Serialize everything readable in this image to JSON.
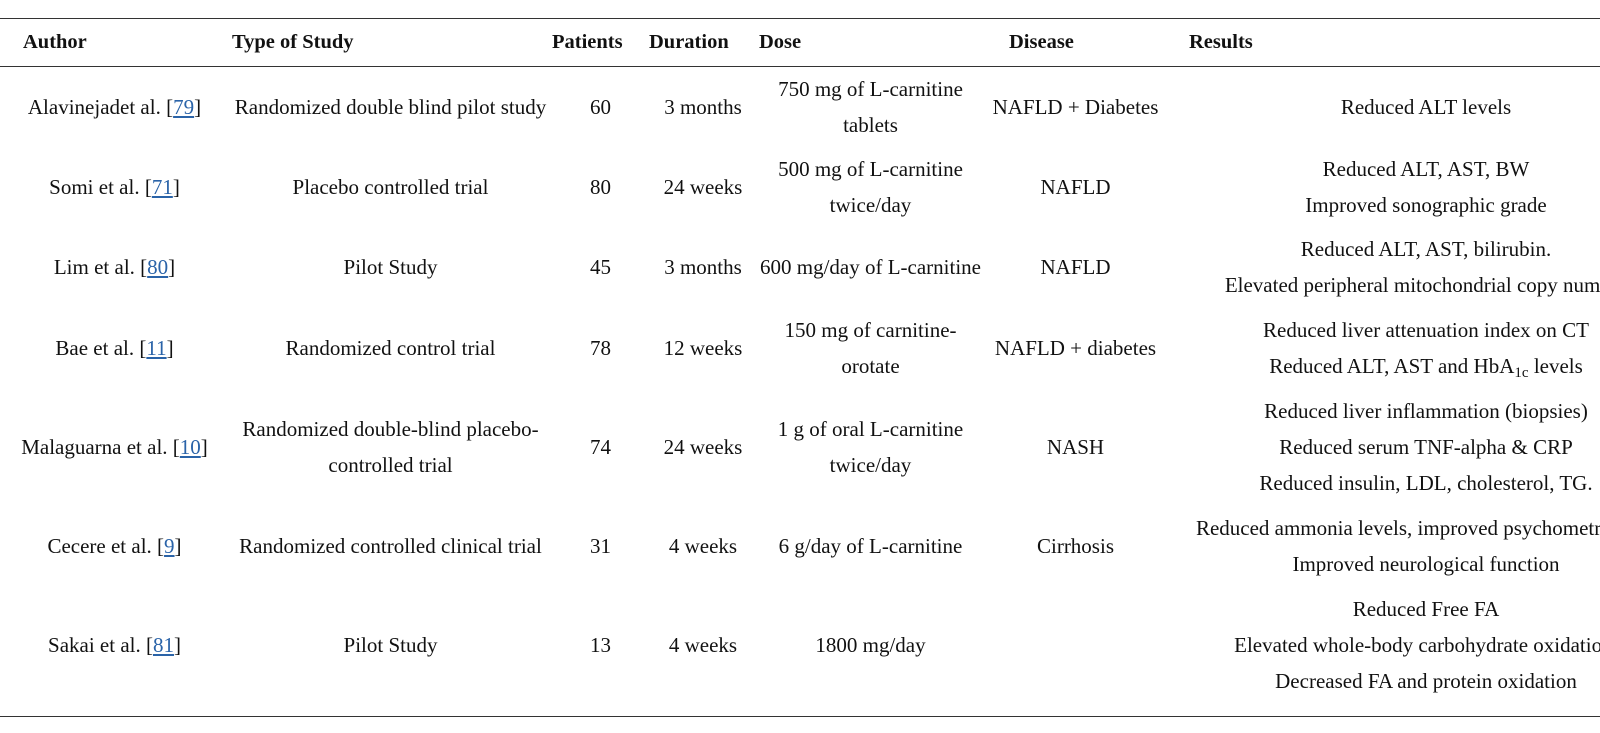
{
  "headers": {
    "author": "Author",
    "type": "Type of Study",
    "patients": "Patients",
    "duration": "Duration",
    "dose": "Dose",
    "disease": "Disease",
    "results": "Results"
  },
  "rows": [
    {
      "author": "Alavinejadet al.",
      "ref": "79",
      "type": "Randomized double blind pilot study",
      "patients": "60",
      "duration": "3 months",
      "dose": "750 mg of L-carnitine tablets",
      "disease": "NAFLD + Diabetes",
      "results": [
        "Reduced ALT levels"
      ]
    },
    {
      "author": "Somi et al.",
      "ref": "71",
      "type": "Placebo controlled trial",
      "patients": "80",
      "duration": "24 weeks",
      "dose": "500 mg of L-carnitine twice/day",
      "disease": "NAFLD",
      "results": [
        "Reduced ALT, AST, BW",
        "Improved sonographic grade"
      ]
    },
    {
      "author": "Lim et al.",
      "ref": "80",
      "type": "Pilot Study",
      "patients": "45",
      "duration": "3 months",
      "dose": "600 mg/day of L-carnitine",
      "disease": "NAFLD",
      "results": [
        "Reduced ALT, AST, bilirubin.",
        "Elevated peripheral mitochondrial copy number"
      ]
    },
    {
      "author": "Bae et al.",
      "ref": "11",
      "type": "Randomized control trial",
      "patients": "78",
      "duration": "12 weeks",
      "dose": "150 mg of carnitine-orotate",
      "disease": "NAFLD + diabetes",
      "results": [
        "Reduced liver attenuation index on CT"
      ],
      "results_hba": {
        "before": "Reduced ALT, AST and HbA",
        "sub": "1c",
        "after": " levels"
      }
    },
    {
      "author": "Malaguarna et al.",
      "ref": "10",
      "type": "Randomized double-blind placebo-controlled trial",
      "patients": "74",
      "duration": "24 weeks",
      "dose": "1 g of oral L-carnitine twice/day",
      "disease": "NASH",
      "results": [
        "Reduced liver inflammation (biopsies)",
        "Reduced serum TNF-alpha & CRP",
        "Reduced insulin, LDL, cholesterol, TG."
      ]
    },
    {
      "author": "Cecere et al.",
      "ref": "9",
      "type": "Randomized controlled clinical trial",
      "patients": "31",
      "duration": "4 weeks",
      "dose": "6 g/day of L-carnitine",
      "disease": "Cirrhosis",
      "results": [
        "Reduced ammonia levels, improved psychometric test. Improved neurological function"
      ]
    },
    {
      "author": "Sakai et al.",
      "ref": "81",
      "type": "Pilot Study",
      "patients": "13",
      "duration": "4 weeks",
      "dose": "1800 mg/day",
      "disease": "",
      "results": [
        "Reduced Free FA",
        "Elevated whole-body carbohydrate oxidation.",
        "Decreased FA and protein oxidation"
      ]
    }
  ],
  "colors": {
    "link": "#2a63a8",
    "rule": "#333333",
    "text": "#111111"
  }
}
